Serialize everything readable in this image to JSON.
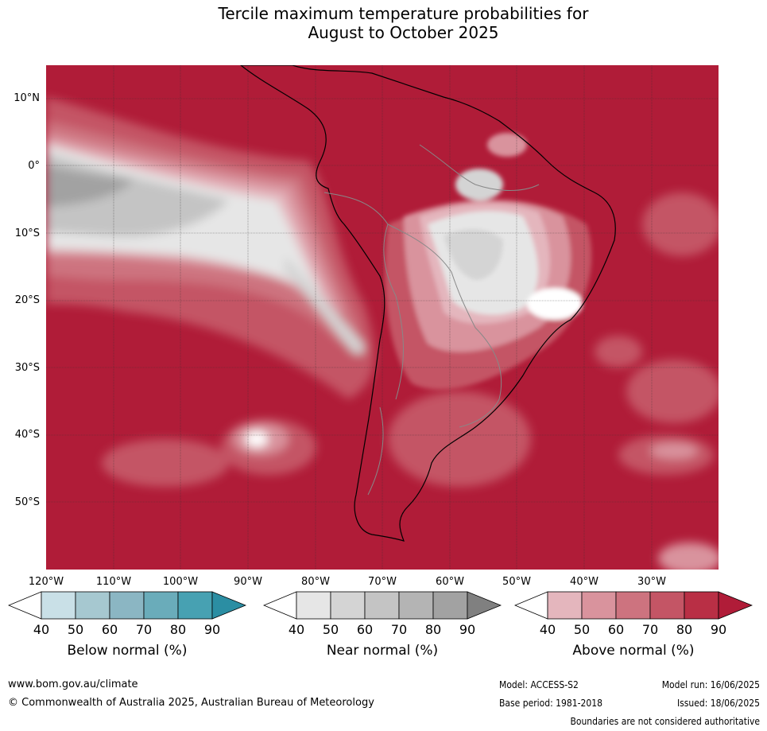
{
  "title_line1": "Tercile maximum temperature probabilities for",
  "title_line2": "August to October 2025",
  "lat_labels": [
    "10°N",
    "0°",
    "10°S",
    "20°S",
    "30°S",
    "40°S",
    "50°S"
  ],
  "lon_labels": [
    "120°W",
    "110°W",
    "100°W",
    "90°W",
    "80°W",
    "70°W",
    "60°W",
    "50°W",
    "40°W",
    "30°W"
  ],
  "colorbars": [
    {
      "label": "Below normal (%)",
      "ticks": [
        "40",
        "50",
        "60",
        "70",
        "80",
        "90"
      ],
      "colors": [
        "#ffffff",
        "#c9e0e7",
        "#a6c8d0",
        "#8bb6c3",
        "#6aacba",
        "#47a1b2",
        "#2b8ea3"
      ]
    },
    {
      "label": "Near normal (%)",
      "ticks": [
        "40",
        "50",
        "60",
        "70",
        "80",
        "90"
      ],
      "colors": [
        "#ffffff",
        "#e6e6e6",
        "#d4d4d4",
        "#c4c4c4",
        "#b4b4b4",
        "#a2a2a2",
        "#808080"
      ]
    },
    {
      "label": "Above normal (%)",
      "ticks": [
        "40",
        "50",
        "60",
        "70",
        "80",
        "90"
      ],
      "colors": [
        "#ffffff",
        "#e4b6bd",
        "#d9939d",
        "#cd737f",
        "#c45565",
        "#b92f45",
        "#b01c38"
      ]
    }
  ],
  "footer": {
    "website": "www.bom.gov.au/climate",
    "copyright": "© Commonwealth of Australia 2025, Australian Bureau of Meteorology",
    "model": "Model: ACCESS-S2",
    "base_period": "Base period: 1981-2018",
    "model_run": "Model run: 16/06/2025",
    "issued": "Issued: 18/06/2025",
    "disclaimer": "Boundaries are not considered authoritative"
  }
}
